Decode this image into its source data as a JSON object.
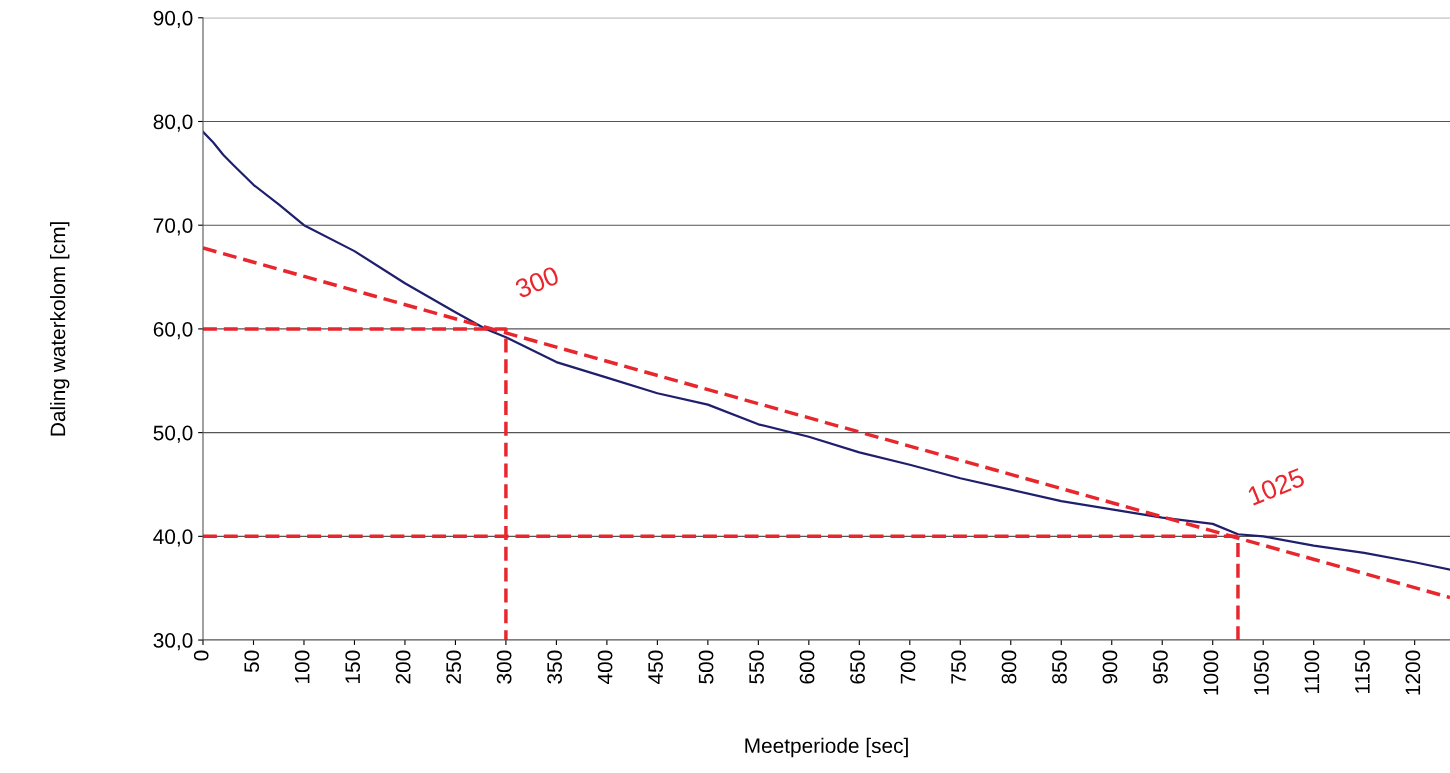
{
  "chart_data": {
    "type": "line",
    "xlabel": "Meetperiode [sec]",
    "ylabel": "Daling waterkolom [cm]",
    "xlim": [
      0,
      1235
    ],
    "ylim": [
      30,
      90
    ],
    "xticks": [
      0,
      50,
      100,
      150,
      200,
      250,
      300,
      350,
      400,
      450,
      500,
      550,
      600,
      650,
      700,
      750,
      800,
      850,
      900,
      950,
      1000,
      1050,
      1100,
      1150,
      1200
    ],
    "yticks": [
      {
        "value": 30,
        "label": "30,0"
      },
      {
        "value": 40,
        "label": "40,0"
      },
      {
        "value": 50,
        "label": "50,0"
      },
      {
        "value": 60,
        "label": "60,0"
      },
      {
        "value": 70,
        "label": "70,0"
      },
      {
        "value": 80,
        "label": "80,0"
      },
      {
        "value": 90,
        "label": "90,0"
      }
    ],
    "grid": "y",
    "legend": false,
    "marker": "none",
    "series": [
      {
        "color": "#1f1f6e",
        "line_style": "solid",
        "x": [
          0,
          10,
          20,
          30,
          50,
          75,
          100,
          150,
          200,
          250,
          280,
          300,
          350,
          400,
          450,
          500,
          550,
          600,
          650,
          700,
          750,
          800,
          850,
          900,
          950,
          1000,
          1025,
          1050,
          1100,
          1150,
          1200,
          1235
        ],
        "values": [
          79.0,
          78.0,
          76.8,
          75.8,
          73.9,
          72.0,
          70.0,
          67.5,
          64.4,
          61.6,
          60.0,
          59.2,
          56.8,
          55.3,
          53.8,
          52.7,
          50.8,
          49.6,
          48.1,
          46.9,
          45.6,
          44.5,
          43.4,
          42.6,
          41.8,
          41.2,
          40.2,
          40.0,
          39.1,
          38.4,
          37.5,
          36.8
        ]
      },
      {
        "color": "#e8262d",
        "line_style": "dashed",
        "x": [
          0,
          1235
        ],
        "values": [
          67.8,
          34.1
        ]
      },
      {
        "color": "#e8262d",
        "line_style": "dashed",
        "x": [
          0,
          300,
          300
        ],
        "values": [
          60,
          60,
          30
        ]
      },
      {
        "color": "#e8262d",
        "line_style": "dashed",
        "x": [
          0,
          1025,
          1025
        ],
        "values": [
          40,
          40,
          30
        ]
      }
    ],
    "annotations": [
      {
        "text": "300",
        "x": 300,
        "y": 60
      },
      {
        "text": "1025",
        "x": 1025,
        "y": 40
      }
    ]
  }
}
